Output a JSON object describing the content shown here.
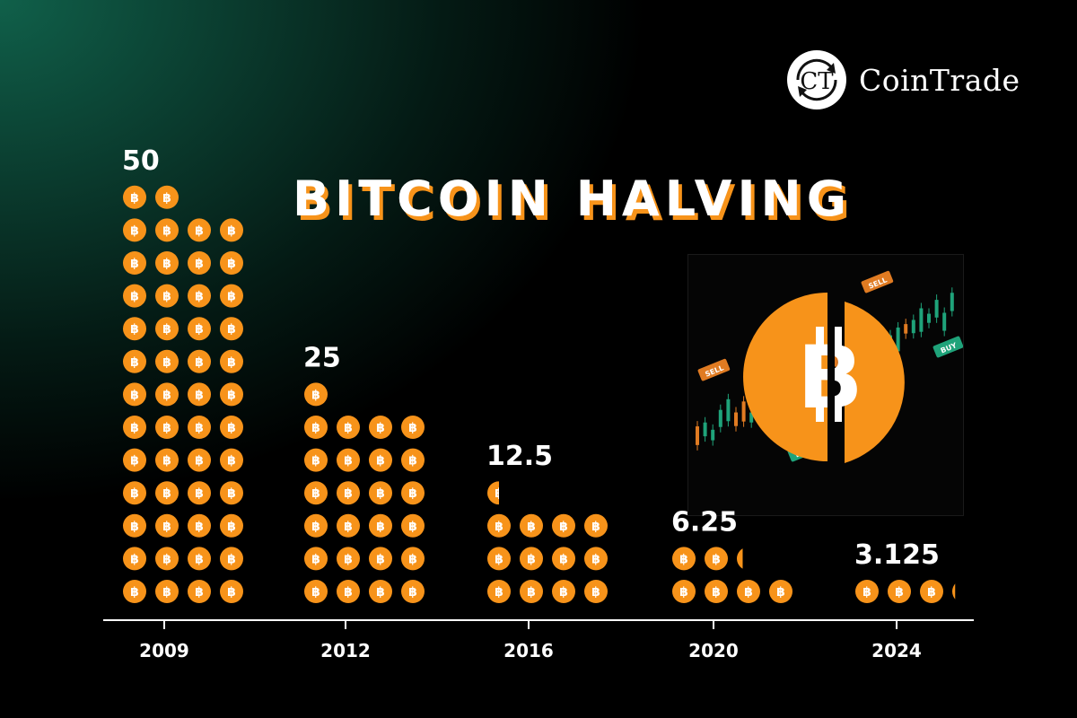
{
  "brand": {
    "name": "CoinTrade",
    "logo_letters": "CT"
  },
  "title": "BITCOIN HALVING",
  "colors": {
    "coin": "#f7931a",
    "text": "#ffffff",
    "candle_up": "#1fa37a",
    "candle_down": "#e07b22"
  },
  "illustration": {
    "sell_label": "SELL",
    "buy_label": "BUY",
    "icon": "split-bitcoin-icon"
  },
  "chart_data": {
    "type": "bar",
    "categories": [
      "2009",
      "2012",
      "2016",
      "2020",
      "2024"
    ],
    "values": [
      50,
      25,
      12.5,
      6.25,
      3.125
    ],
    "value_labels": [
      "50",
      "25",
      "12.5",
      "6.25",
      "3.125"
    ],
    "title": "BITCOIN HALVING",
    "xlabel": "",
    "ylabel": "",
    "grid": false
  }
}
